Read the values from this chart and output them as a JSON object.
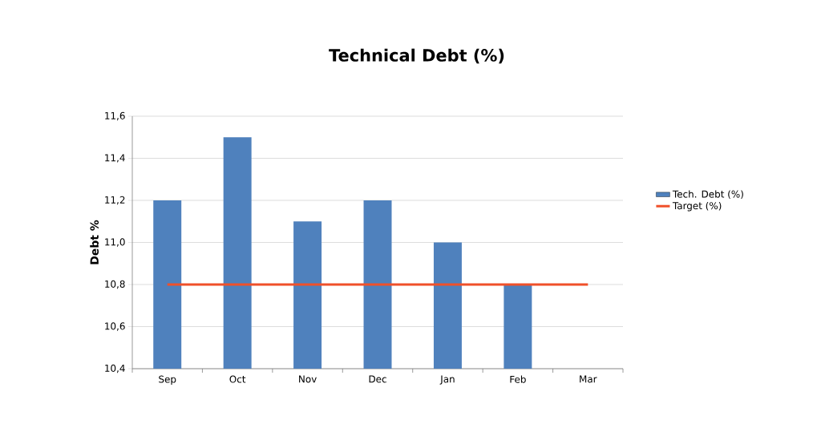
{
  "chart_data": {
    "type": "bar",
    "title": "Technical Debt (%)",
    "ylabel": "Debt %",
    "categories": [
      "Sep",
      "Oct",
      "Nov",
      "Dec",
      "Jan",
      "Feb",
      "Mar"
    ],
    "series": [
      {
        "name": "Tech. Debt (%)",
        "color": "#4f81bd",
        "values": [
          11.2,
          11.5,
          11.1,
          11.2,
          11.0,
          10.8,
          null
        ]
      },
      {
        "name": "Target (%)",
        "type": "line",
        "color": "#f0502a",
        "values": [
          10.8,
          10.8,
          10.8,
          10.8,
          10.8,
          10.8,
          10.8
        ]
      }
    ],
    "ylim": [
      10.4,
      11.6
    ],
    "yticks": [
      {
        "value": 10.4,
        "label": "10,4"
      },
      {
        "value": 10.6,
        "label": "10,6"
      },
      {
        "value": 10.8,
        "label": "10,8"
      },
      {
        "value": 11.0,
        "label": "11,0"
      },
      {
        "value": 11.2,
        "label": "11,2"
      },
      {
        "value": 11.4,
        "label": "11,4"
      },
      {
        "value": 11.6,
        "label": "11,6"
      }
    ],
    "grid": "y",
    "legend": "right"
  }
}
